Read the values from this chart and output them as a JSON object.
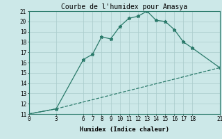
{
  "title": "Courbe de l'humidex pour Amasya",
  "xlabel": "Humidex (Indice chaleur)",
  "bg_color": "#cce8e8",
  "grid_color": "#aacccc",
  "line_color": "#2a7a6a",
  "xlim": [
    0,
    21
  ],
  "ylim": [
    11,
    21
  ],
  "xticks": [
    0,
    3,
    6,
    7,
    8,
    9,
    10,
    11,
    12,
    13,
    14,
    15,
    16,
    17,
    18,
    21
  ],
  "yticks": [
    11,
    12,
    13,
    14,
    15,
    16,
    17,
    18,
    19,
    20,
    21
  ],
  "line1_x": [
    0,
    3,
    6,
    7,
    8,
    9,
    10,
    11,
    12,
    13,
    14,
    15,
    16,
    17,
    18,
    21
  ],
  "line1_y": [
    11,
    11.5,
    16.3,
    16.8,
    18.5,
    18.3,
    19.5,
    20.3,
    20.5,
    21.0,
    20.1,
    20.0,
    19.2,
    18.0,
    17.4,
    15.5
  ],
  "line2_x": [
    0,
    3,
    21
  ],
  "line2_y": [
    11,
    11.5,
    15.5
  ],
  "marker": "*",
  "linewidth": 0.9,
  "markersize": 3.5,
  "title_fontsize": 7,
  "tick_fontsize": 5.5,
  "label_fontsize": 6.5
}
